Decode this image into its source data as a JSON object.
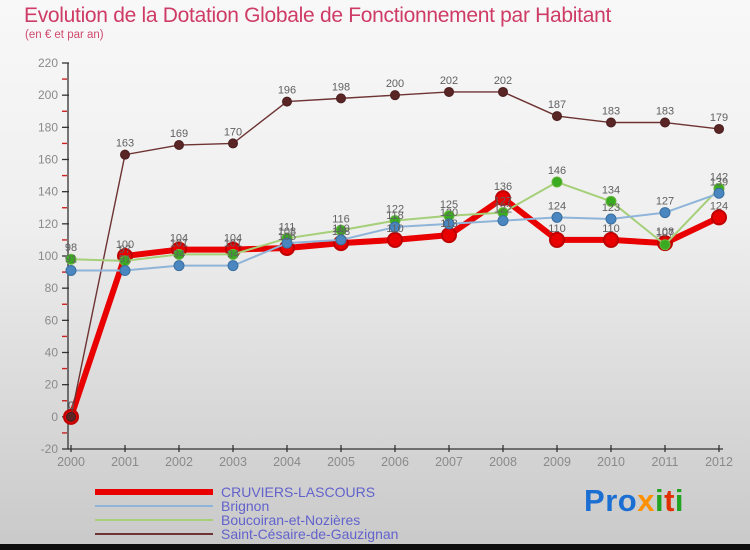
{
  "title": "Evolution de la Dotation Globale de Fonctionnement par Habitant",
  "subtitle": "(en € et par an)",
  "colors": {
    "title": "#ce3c66",
    "legend_text": "#6262cc",
    "axis_line": "#333333",
    "tick_label": "#8a8a8a",
    "minor_tick": "#cc2222",
    "value_label": "#616161",
    "bottom_bar": "#0d0d0d"
  },
  "chart_data": {
    "type": "line",
    "title": "Evolution de la Dotation Globale de Fonctionnement par Habitant",
    "subtitle": "(en € et par an)",
    "x": [
      2000,
      2001,
      2002,
      2003,
      2004,
      2005,
      2006,
      2007,
      2008,
      2009,
      2010,
      2011,
      2012
    ],
    "series": [
      {
        "name": "CRUVIERS-LASCOURS",
        "color": "#e90000",
        "dot_color": "#e90000",
        "dot_stroke": "#bf0000",
        "line_width": 6,
        "dot_radius": 7,
        "values": [
          0,
          100,
          104,
          104,
          105,
          108,
          110,
          113,
          136,
          110,
          110,
          108,
          124
        ]
      },
      {
        "name": "Brignon",
        "color": "#8fb4d9",
        "dot_color": "#4a87c0",
        "dot_stroke": "#3a6e9e",
        "line_width": 2,
        "dot_radius": 5,
        "values": [
          91,
          91,
          94,
          94,
          108,
          110,
          118,
          120,
          122,
          124,
          123,
          127,
          139
        ]
      },
      {
        "name": "Boucoiran-et-Nozières",
        "color": "#a5cf78",
        "dot_color": "#3aab20",
        "dot_stroke": "#67b33e",
        "line_width": 2,
        "dot_radius": 5,
        "values": [
          98,
          97,
          101,
          101,
          111,
          116,
          122,
          125,
          127,
          146,
          134,
          107,
          142
        ]
      },
      {
        "name": "Saint-Césaire-de-Gauzignan",
        "color": "#6e3333",
        "dot_color": "#5a2525",
        "dot_stroke": "#4a1e1e",
        "line_width": 1.4,
        "dot_radius": 4.5,
        "values": [
          0,
          163,
          169,
          170,
          196,
          198,
          200,
          202,
          202,
          187,
          183,
          183,
          179
        ]
      }
    ],
    "ylim": [
      -20,
      220
    ],
    "ytick_step": 20,
    "xlabel": "",
    "ylabel": "",
    "grid": false,
    "legend_position": "bottom-left",
    "point_labels_visible": true
  },
  "logo": {
    "name": "Proxiti",
    "letters": [
      {
        "t": "P",
        "c": "#1b6ed2"
      },
      {
        "t": "r",
        "c": "#1b6ed2"
      },
      {
        "t": "o",
        "c": "#1b6ed2"
      },
      {
        "t": "x",
        "c": "#ff9000"
      },
      {
        "t": "i",
        "c": "#22a322"
      },
      {
        "t": "t",
        "c": "#e03000"
      },
      {
        "t": "i",
        "c": "#22a322"
      }
    ]
  }
}
